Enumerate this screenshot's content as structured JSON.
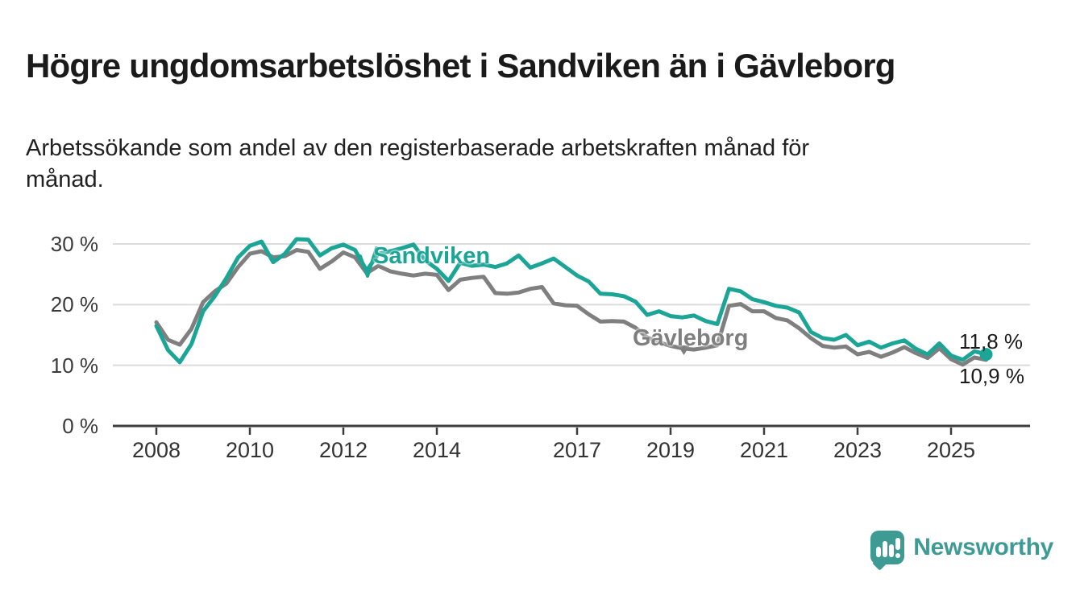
{
  "title": "Högre ungdomsarbetslöshet i Sandviken än i Gävleborg",
  "subtitle": "Arbetssökande som andel av den registerbaserade arbetskraften månad för månad.",
  "colors": {
    "sandviken": "#1ba596",
    "gavleborg": "#7f7f7f",
    "grid": "#dcdcdc",
    "axis": "#3c3c3c",
    "text": "#1a1a1a",
    "brand": "#3e9b94"
  },
  "chart_data": {
    "type": "line",
    "x_unit": "decimal_year",
    "grid": "horizontal",
    "ylim": [
      0,
      33
    ],
    "yticks": [
      {
        "value": 30,
        "label": "30 %"
      },
      {
        "value": 20,
        "label": "20 %"
      },
      {
        "value": 10,
        "label": "10 %"
      },
      {
        "value": 0,
        "label": "0 %"
      }
    ],
    "xticks": [
      {
        "value": 2008,
        "label": "2008"
      },
      {
        "value": 2010,
        "label": "2010"
      },
      {
        "value": 2012,
        "label": "2012"
      },
      {
        "value": 2014,
        "label": "2014"
      },
      {
        "value": 2017,
        "label": "2017"
      },
      {
        "value": 2019,
        "label": "2019"
      },
      {
        "value": 2021,
        "label": "2021"
      },
      {
        "value": 2023,
        "label": "2023"
      },
      {
        "value": 2025,
        "label": "2025"
      }
    ],
    "x": [
      2008.0,
      2008.25,
      2008.5,
      2008.75,
      2009.0,
      2009.25,
      2009.5,
      2009.75,
      2010.0,
      2010.25,
      2010.5,
      2010.75,
      2011.0,
      2011.25,
      2011.5,
      2011.75,
      2012.0,
      2012.25,
      2012.5,
      2012.75,
      2013.0,
      2013.25,
      2013.5,
      2013.75,
      2014.0,
      2014.25,
      2014.5,
      2014.75,
      2015.0,
      2015.25,
      2015.5,
      2015.75,
      2016.0,
      2016.25,
      2016.5,
      2016.75,
      2017.0,
      2017.25,
      2017.5,
      2017.75,
      2018.0,
      2018.25,
      2018.5,
      2018.75,
      2019.0,
      2019.25,
      2019.5,
      2019.75,
      2020.0,
      2020.25,
      2020.5,
      2020.75,
      2021.0,
      2021.25,
      2021.5,
      2021.75,
      2022.0,
      2022.25,
      2022.5,
      2022.75,
      2023.0,
      2023.25,
      2023.5,
      2023.75,
      2024.0,
      2024.25,
      2024.5,
      2024.75,
      2025.0,
      2025.25,
      2025.5,
      2025.75
    ],
    "series": [
      {
        "name": "Sandviken",
        "color": "#1ba596",
        "values": [
          16.5,
          12.5,
          10.5,
          13.5,
          18.9,
          21.4,
          24.4,
          27.8,
          29.7,
          30.4,
          27.0,
          28.4,
          30.8,
          30.7,
          28.1,
          29.3,
          29.9,
          29.0,
          25.6,
          28.4,
          28.8,
          29.3,
          29.9,
          27.3,
          25.9,
          23.9,
          26.9,
          26.4,
          26.6,
          26.2,
          26.8,
          28.1,
          26.1,
          26.8,
          27.6,
          26.2,
          24.8,
          23.8,
          21.8,
          21.7,
          21.4,
          20.5,
          18.3,
          18.9,
          18.1,
          17.9,
          18.2,
          17.3,
          16.8,
          22.6,
          22.2,
          20.9,
          20.4,
          19.8,
          19.5,
          18.7,
          15.5,
          14.5,
          14.2,
          15.0,
          13.3,
          13.9,
          12.9,
          13.6,
          14.1,
          12.7,
          11.8,
          13.6,
          11.6,
          10.9,
          12.3,
          11.8
        ]
      },
      {
        "name": "Gävleborg",
        "color": "#7f7f7f",
        "values": [
          17.1,
          14.2,
          13.4,
          16.0,
          20.4,
          22.2,
          23.5,
          26.2,
          28.4,
          28.8,
          27.8,
          28.0,
          29.0,
          28.7,
          25.9,
          27.1,
          28.6,
          27.8,
          25.2,
          26.4,
          25.5,
          25.1,
          24.8,
          25.1,
          24.9,
          22.4,
          24.1,
          24.4,
          24.6,
          21.9,
          21.8,
          22.0,
          22.6,
          22.9,
          20.2,
          19.9,
          19.8,
          18.4,
          17.2,
          17.3,
          17.2,
          16.2,
          14.6,
          13.8,
          13.2,
          12.8,
          12.6,
          12.9,
          13.3,
          19.8,
          20.1,
          18.9,
          18.9,
          17.8,
          17.4,
          16.1,
          14.5,
          13.2,
          12.9,
          13.1,
          11.8,
          12.2,
          11.4,
          12.1,
          13.0,
          12.0,
          11.2,
          12.8,
          11.0,
          10.1,
          11.3,
          10.9
        ]
      }
    ],
    "end_labels": {
      "sandviken": "11,8 %",
      "gavleborg": "10,9 %"
    }
  },
  "footer": {
    "brand": "Newsworthy",
    "logo_icon": "speech-bubble-bar-chart-icon"
  }
}
